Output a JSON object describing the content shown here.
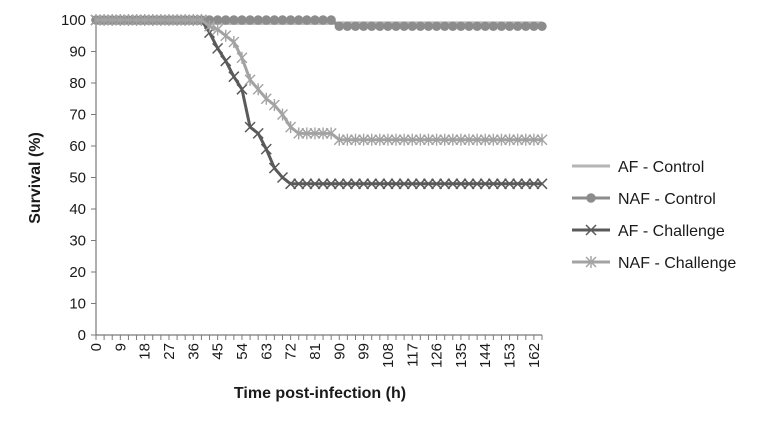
{
  "chart_data": {
    "type": "line",
    "xlabel": "Time post-infection (h)",
    "ylabel": "Survival (%)",
    "xlim": [
      0,
      165
    ],
    "ylim": [
      0,
      100
    ],
    "x_tick_labels": [
      "0",
      "9",
      "18",
      "27",
      "36",
      "45",
      "54",
      "63",
      "72",
      "81",
      "90",
      "99",
      "108",
      "117",
      "126",
      "135",
      "144",
      "153",
      "162"
    ],
    "y_tick_labels": [
      "0",
      "10",
      "20",
      "30",
      "40",
      "50",
      "60",
      "70",
      "80",
      "90",
      "100"
    ],
    "grid": false,
    "legend_position": "right",
    "series": [
      {
        "name": "AF - Control",
        "color": "#b5b5b5",
        "marker": "none",
        "points": [
          [
            0,
            99
          ],
          [
            165,
            99
          ]
        ]
      },
      {
        "name": "NAF - Control",
        "color": "#8c8c8c",
        "marker": "circle",
        "points": [
          [
            0,
            100
          ],
          [
            3,
            100
          ],
          [
            6,
            100
          ],
          [
            9,
            100
          ],
          [
            12,
            100
          ],
          [
            15,
            100
          ],
          [
            18,
            100
          ],
          [
            21,
            100
          ],
          [
            24,
            100
          ],
          [
            27,
            100
          ],
          [
            30,
            100
          ],
          [
            33,
            100
          ],
          [
            36,
            100
          ],
          [
            39,
            100
          ],
          [
            42,
            100
          ],
          [
            45,
            100
          ],
          [
            48,
            100
          ],
          [
            51,
            100
          ],
          [
            54,
            100
          ],
          [
            57,
            100
          ],
          [
            60,
            100
          ],
          [
            63,
            100
          ],
          [
            66,
            100
          ],
          [
            69,
            100
          ],
          [
            72,
            100
          ],
          [
            75,
            100
          ],
          [
            78,
            100
          ],
          [
            81,
            100
          ],
          [
            84,
            100
          ],
          [
            87,
            100
          ],
          [
            90,
            98
          ],
          [
            93,
            98
          ],
          [
            96,
            98
          ],
          [
            99,
            98
          ],
          [
            102,
            98
          ],
          [
            105,
            98
          ],
          [
            108,
            98
          ],
          [
            111,
            98
          ],
          [
            114,
            98
          ],
          [
            117,
            98
          ],
          [
            120,
            98
          ],
          [
            123,
            98
          ],
          [
            126,
            98
          ],
          [
            129,
            98
          ],
          [
            132,
            98
          ],
          [
            135,
            98
          ],
          [
            138,
            98
          ],
          [
            141,
            98
          ],
          [
            144,
            98
          ],
          [
            147,
            98
          ],
          [
            150,
            98
          ],
          [
            153,
            98
          ],
          [
            156,
            98
          ],
          [
            159,
            98
          ],
          [
            162,
            98
          ],
          [
            165,
            98
          ]
        ]
      },
      {
        "name": "AF - Challenge",
        "color": "#5a5a5a",
        "marker": "x",
        "points": [
          [
            0,
            100
          ],
          [
            3,
            100
          ],
          [
            6,
            100
          ],
          [
            9,
            100
          ],
          [
            12,
            100
          ],
          [
            15,
            100
          ],
          [
            18,
            100
          ],
          [
            21,
            100
          ],
          [
            24,
            100
          ],
          [
            27,
            100
          ],
          [
            30,
            100
          ],
          [
            33,
            100
          ],
          [
            36,
            100
          ],
          [
            39,
            100
          ],
          [
            42,
            96
          ],
          [
            45,
            91
          ],
          [
            48,
            87
          ],
          [
            51,
            82
          ],
          [
            54,
            78
          ],
          [
            57,
            66
          ],
          [
            60,
            64
          ],
          [
            63,
            59
          ],
          [
            66,
            53
          ],
          [
            69,
            50
          ],
          [
            72,
            48
          ],
          [
            75,
            48
          ],
          [
            78,
            48
          ],
          [
            81,
            48
          ],
          [
            84,
            48
          ],
          [
            87,
            48
          ],
          [
            90,
            48
          ],
          [
            93,
            48
          ],
          [
            96,
            48
          ],
          [
            99,
            48
          ],
          [
            102,
            48
          ],
          [
            105,
            48
          ],
          [
            108,
            48
          ],
          [
            111,
            48
          ],
          [
            114,
            48
          ],
          [
            117,
            48
          ],
          [
            120,
            48
          ],
          [
            123,
            48
          ],
          [
            126,
            48
          ],
          [
            129,
            48
          ],
          [
            132,
            48
          ],
          [
            135,
            48
          ],
          [
            138,
            48
          ],
          [
            141,
            48
          ],
          [
            144,
            48
          ],
          [
            147,
            48
          ],
          [
            150,
            48
          ],
          [
            153,
            48
          ],
          [
            156,
            48
          ],
          [
            159,
            48
          ],
          [
            162,
            48
          ],
          [
            165,
            48
          ]
        ]
      },
      {
        "name": "NAF - Challenge",
        "color": "#a3a3a3",
        "marker": "star",
        "points": [
          [
            0,
            100
          ],
          [
            3,
            100
          ],
          [
            6,
            100
          ],
          [
            9,
            100
          ],
          [
            12,
            100
          ],
          [
            15,
            100
          ],
          [
            18,
            100
          ],
          [
            21,
            100
          ],
          [
            24,
            100
          ],
          [
            27,
            100
          ],
          [
            30,
            100
          ],
          [
            33,
            100
          ],
          [
            36,
            100
          ],
          [
            39,
            100
          ],
          [
            42,
            98
          ],
          [
            45,
            97
          ],
          [
            48,
            95
          ],
          [
            51,
            93
          ],
          [
            54,
            88
          ],
          [
            57,
            81
          ],
          [
            60,
            78
          ],
          [
            63,
            75
          ],
          [
            66,
            73
          ],
          [
            69,
            70
          ],
          [
            72,
            66
          ],
          [
            75,
            64
          ],
          [
            78,
            64
          ],
          [
            81,
            64
          ],
          [
            84,
            64
          ],
          [
            87,
            64
          ],
          [
            90,
            62
          ],
          [
            93,
            62
          ],
          [
            96,
            62
          ],
          [
            99,
            62
          ],
          [
            102,
            62
          ],
          [
            105,
            62
          ],
          [
            108,
            62
          ],
          [
            111,
            62
          ],
          [
            114,
            62
          ],
          [
            117,
            62
          ],
          [
            120,
            62
          ],
          [
            123,
            62
          ],
          [
            126,
            62
          ],
          [
            129,
            62
          ],
          [
            132,
            62
          ],
          [
            135,
            62
          ],
          [
            138,
            62
          ],
          [
            141,
            62
          ],
          [
            144,
            62
          ],
          [
            147,
            62
          ],
          [
            150,
            62
          ],
          [
            153,
            62
          ],
          [
            156,
            62
          ],
          [
            159,
            62
          ],
          [
            162,
            62
          ],
          [
            165,
            62
          ]
        ]
      }
    ]
  }
}
